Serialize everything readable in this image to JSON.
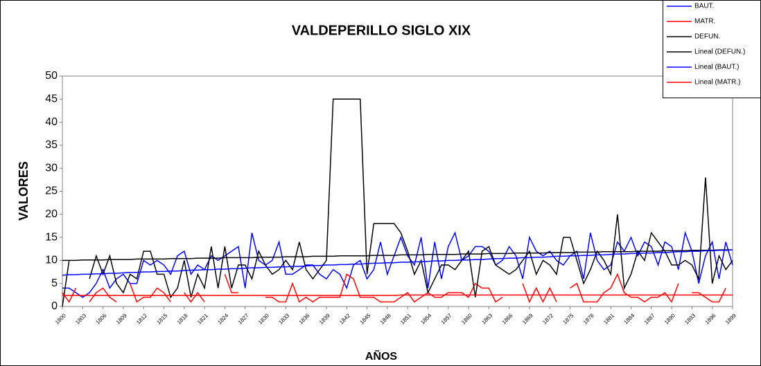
{
  "chart_data": {
    "type": "line",
    "title": "VALDEPERILLO SIGLO XIX",
    "x_label": "AÑOS",
    "y_label": "VALORES",
    "categories": [
      "1800",
      null,
      null,
      "1803",
      null,
      null,
      "1806",
      null,
      null,
      "1809",
      null,
      null,
      "1812",
      null,
      null,
      "1815",
      null,
      null,
      "1818",
      null,
      null,
      "1821",
      null,
      null,
      "1824",
      null,
      null,
      "1827",
      null,
      null,
      "1830",
      null,
      null,
      "1833",
      null,
      null,
      "1836",
      null,
      null,
      "1839",
      null,
      null,
      "1842",
      null,
      null,
      "1845",
      null,
      null,
      "1848",
      null,
      null,
      "1851",
      null,
      null,
      "1854",
      null,
      null,
      "1857",
      null,
      null,
      "1860",
      null,
      null,
      "1863",
      null,
      null,
      "1866",
      null,
      null,
      "1869",
      null,
      null,
      "1872",
      null,
      null,
      "1875",
      null,
      null,
      "1878",
      null,
      null,
      "1881",
      null,
      null,
      "1884",
      null,
      null,
      "1887",
      null,
      null,
      "1890",
      null,
      null,
      "1893",
      null,
      null,
      "1896",
      null,
      null,
      "1899"
    ],
    "series": [
      {
        "name": "BAUT.",
        "color": "#0000ff",
        "values": [
          4,
          4,
          3,
          2,
          3,
          5,
          8,
          4,
          6,
          7,
          5,
          5,
          10,
          9,
          10,
          9,
          7,
          11,
          12,
          7,
          9,
          8,
          11,
          10,
          11,
          12,
          13,
          4,
          16,
          10,
          9,
          10,
          14,
          7,
          7,
          8,
          9,
          9,
          7,
          6,
          8,
          7,
          4,
          9,
          10,
          6,
          8,
          14,
          7,
          11,
          15,
          11,
          9,
          15,
          4,
          14,
          6,
          13,
          16,
          10,
          11,
          13,
          13,
          12,
          9,
          10,
          13,
          11,
          6,
          15,
          12,
          11,
          12,
          10,
          9,
          11,
          12,
          6,
          16,
          10,
          8,
          9,
          14,
          12,
          15,
          11,
          14,
          13,
          9,
          14,
          13,
          8,
          16,
          12,
          5,
          11,
          14,
          6,
          14,
          9
        ]
      },
      {
        "name": "MATR.",
        "color": "#ff0000",
        "values": [
          3,
          1,
          4,
          null,
          1,
          3,
          4,
          2,
          1,
          null,
          5,
          1,
          2,
          2,
          4,
          3,
          1,
          null,
          3,
          1,
          3,
          1,
          null,
          null,
          7,
          3,
          3,
          null,
          null,
          null,
          2,
          2,
          1,
          1,
          5,
          1,
          2,
          1,
          2,
          2,
          2,
          2,
          7,
          6,
          2,
          2,
          2,
          1,
          1,
          1,
          2,
          3,
          1,
          2,
          3,
          2,
          2,
          3,
          3,
          3,
          2,
          5,
          4,
          4,
          1,
          2,
          null,
          null,
          5,
          1,
          4,
          1,
          4,
          1,
          null,
          4,
          5,
          1,
          1,
          1,
          3,
          4,
          7,
          3,
          2,
          2,
          1,
          2,
          2,
          3,
          1,
          5,
          null,
          3,
          3,
          2,
          1,
          1,
          4,
          null
        ]
      },
      {
        "name": "DEFUN.",
        "color": "#000000",
        "values": [
          0,
          10,
          null,
          null,
          6,
          11,
          7,
          11,
          5,
          3,
          7,
          6,
          12,
          12,
          7,
          7,
          2,
          4,
          10,
          2,
          7,
          4,
          13,
          4,
          13,
          4,
          9,
          9,
          6,
          12,
          9,
          7,
          8,
          10,
          8,
          14,
          8,
          6,
          8,
          10,
          45,
          45,
          45,
          45,
          45,
          7,
          18,
          18,
          18,
          18,
          16,
          12,
          7,
          10,
          3,
          6,
          9,
          9,
          8,
          10,
          12,
          2,
          12,
          13,
          9,
          8,
          7,
          8,
          10,
          12,
          7,
          10,
          9,
          7,
          15,
          15,
          10,
          5,
          8,
          12,
          10,
          7,
          20,
          4,
          7,
          12,
          10,
          16,
          14,
          12,
          9,
          9,
          10,
          9,
          6,
          28,
          5,
          11,
          8,
          10
        ]
      },
      {
        "name": "Lineal (DEFUN.)",
        "color": "#000000",
        "values": [
          10.0,
          10.0,
          10.0,
          10.1,
          10.1,
          10.1,
          10.1,
          10.2,
          10.2,
          10.2,
          10.2,
          10.3,
          10.3,
          10.3,
          10.3,
          10.3,
          10.4,
          10.4,
          10.4,
          10.4,
          10.5,
          10.5,
          10.5,
          10.5,
          10.6,
          10.6,
          10.6,
          10.6,
          10.6,
          10.7,
          10.7,
          10.7,
          10.7,
          10.8,
          10.8,
          10.8,
          10.8,
          10.9,
          10.9,
          10.9,
          10.9,
          11.0,
          11.0,
          11.0,
          11.0,
          11.0,
          11.1,
          11.1,
          11.1,
          11.1,
          11.2,
          11.2,
          11.2,
          11.2,
          11.3,
          11.3,
          11.3,
          11.3,
          11.3,
          11.4,
          11.4,
          11.4,
          11.4,
          11.5,
          11.5,
          11.5,
          11.5,
          11.6,
          11.6,
          11.6,
          11.6,
          11.6,
          11.7,
          11.7,
          11.7,
          11.7,
          11.8,
          11.8,
          11.8,
          11.8,
          11.9,
          11.9,
          11.9,
          11.9,
          11.9,
          12.0,
          12.0,
          12.0,
          12.0,
          12.1,
          12.1,
          12.1,
          12.1,
          12.2,
          12.2,
          12.2,
          12.2,
          12.3,
          12.3,
          12.3
        ]
      },
      {
        "name": "Lineal (BAUT.)",
        "color": "#0000ff",
        "values": [
          6.8,
          6.9,
          6.9,
          7.0,
          7.0,
          7.1,
          7.1,
          7.2,
          7.2,
          7.3,
          7.4,
          7.4,
          7.5,
          7.5,
          7.6,
          7.6,
          7.7,
          7.7,
          7.8,
          7.9,
          7.9,
          8.0,
          8.0,
          8.1,
          8.1,
          8.2,
          8.2,
          8.3,
          8.4,
          8.4,
          8.5,
          8.5,
          8.6,
          8.6,
          8.7,
          8.7,
          8.8,
          8.9,
          8.9,
          9.0,
          9.0,
          9.1,
          9.1,
          9.2,
          9.2,
          9.3,
          9.4,
          9.4,
          9.5,
          9.5,
          9.6,
          9.6,
          9.7,
          9.7,
          9.8,
          9.9,
          9.9,
          10.0,
          10.0,
          10.1,
          10.1,
          10.2,
          10.2,
          10.3,
          10.4,
          10.4,
          10.5,
          10.5,
          10.6,
          10.6,
          10.7,
          10.7,
          10.8,
          10.9,
          10.9,
          11.0,
          11.0,
          11.1,
          11.1,
          11.2,
          11.2,
          11.3,
          11.4,
          11.4,
          11.5,
          11.5,
          11.6,
          11.6,
          11.7,
          11.7,
          11.8,
          11.9,
          11.9,
          12.0,
          12.0,
          12.1,
          12.1,
          12.2,
          12.2,
          12.3
        ]
      },
      {
        "name": "Lineal (MATR.)",
        "color": "#ff0000",
        "values": [
          2.4,
          2.4,
          2.4,
          2.4,
          2.4,
          2.4,
          2.4,
          2.4,
          2.4,
          2.4,
          2.4,
          2.4,
          2.4,
          2.4,
          2.4,
          2.4,
          2.4,
          2.4,
          2.4,
          2.4,
          2.4,
          2.4,
          2.4,
          2.4,
          2.4,
          2.4,
          2.4,
          2.4,
          2.4,
          2.4,
          2.4,
          2.4,
          2.4,
          2.4,
          2.4,
          2.4,
          2.4,
          2.4,
          2.4,
          2.4,
          2.4,
          2.4,
          2.4,
          2.4,
          2.4,
          2.4,
          2.4,
          2.4,
          2.4,
          2.4,
          2.5,
          2.5,
          2.5,
          2.5,
          2.5,
          2.5,
          2.5,
          2.5,
          2.5,
          2.5,
          2.5,
          2.5,
          2.5,
          2.5,
          2.5,
          2.5,
          2.5,
          2.5,
          2.5,
          2.5,
          2.5,
          2.5,
          2.5,
          2.5,
          2.5,
          2.5,
          2.5,
          2.5,
          2.5,
          2.5,
          2.5,
          2.5,
          2.5,
          2.5,
          2.5,
          2.5,
          2.5,
          2.5,
          2.5,
          2.5,
          2.5,
          2.5,
          2.5,
          2.5,
          2.5,
          2.5,
          2.5,
          2.5,
          2.5,
          2.5
        ]
      }
    ],
    "ylim": [
      0,
      50
    ],
    "yticks": [
      0,
      5,
      10,
      15,
      20,
      25,
      30,
      35,
      40,
      45,
      50
    ],
    "grid": false,
    "legend": "top-right"
  }
}
